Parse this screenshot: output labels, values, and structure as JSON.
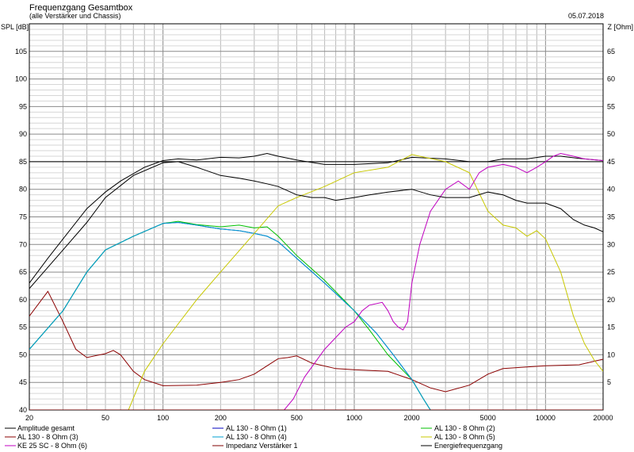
{
  "chart_data": {
    "type": "line",
    "title": "Frequenzgang Gesamtbox",
    "subtitle": "(alle Verstärker und Chassis)",
    "date": "05.07.2018",
    "ylabel_left": "SPL [dB]",
    "ylabel_right": "Z [Ohm]",
    "xscale": "log",
    "xlim": [
      20,
      20000
    ],
    "ylim_left": [
      40,
      110
    ],
    "ylim_right": [
      0,
      70
    ],
    "grid": true,
    "x_ticks": [
      {
        "value": 20,
        "label": "20"
      },
      {
        "value": 50,
        "label": "50"
      },
      {
        "value": 100,
        "label": "100"
      },
      {
        "value": 200,
        "label": "200"
      },
      {
        "value": 500,
        "label": "500"
      },
      {
        "value": 1000,
        "label": "1000"
      },
      {
        "value": 2000,
        "label": "2000"
      },
      {
        "value": 5000,
        "label": "5000"
      },
      {
        "value": 10000,
        "label": "10000"
      },
      {
        "value": 20000,
        "label": "20000"
      }
    ],
    "y_ticks_left": [
      {
        "value": 40,
        "label": "40"
      },
      {
        "value": 45,
        "label": "45"
      },
      {
        "value": 50,
        "label": "50"
      },
      {
        "value": 55,
        "label": "55"
      },
      {
        "value": 60,
        "label": "60"
      },
      {
        "value": 65,
        "label": "65"
      },
      {
        "value": 70,
        "label": "70"
      },
      {
        "value": 75,
        "label": "75"
      },
      {
        "value": 80,
        "label": "80"
      },
      {
        "value": 85,
        "label": "85"
      },
      {
        "value": 90,
        "label": "90"
      },
      {
        "value": 95,
        "label": "95"
      },
      {
        "value": 100,
        "label": "100"
      },
      {
        "value": 105,
        "label": "105"
      }
    ],
    "y_ticks_right": [
      {
        "value": 5,
        "label": "5"
      },
      {
        "value": 10,
        "label": "10"
      },
      {
        "value": 15,
        "label": "15"
      },
      {
        "value": 20,
        "label": "20"
      },
      {
        "value": 25,
        "label": "25"
      },
      {
        "value": 30,
        "label": "30"
      },
      {
        "value": 35,
        "label": "35"
      },
      {
        "value": 40,
        "label": "40"
      },
      {
        "value": 45,
        "label": "45"
      },
      {
        "value": 50,
        "label": "50"
      },
      {
        "value": 55,
        "label": "55"
      },
      {
        "value": 60,
        "label": "60"
      },
      {
        "value": 65,
        "label": "65"
      }
    ],
    "series": [
      {
        "name": "Amplitude gesamt",
        "color": "#000000",
        "axis": "left",
        "x": [
          20,
          25,
          30,
          40,
          50,
          60,
          80,
          100,
          120,
          150,
          200,
          250,
          300,
          350,
          400,
          500,
          700,
          1000,
          1500,
          2000,
          3000,
          4000,
          5000,
          6000,
          8000,
          10000,
          12000,
          15000,
          20000
        ],
        "y": [
          63,
          67.5,
          71,
          76.5,
          79.5,
          81.5,
          84,
          85.2,
          85.5,
          85.3,
          85.8,
          85.7,
          86,
          86.5,
          86,
          85.3,
          84.5,
          84.5,
          84.8,
          85.8,
          85.5,
          85,
          85,
          85.5,
          85.5,
          86,
          86,
          85.6,
          85.2
        ]
      },
      {
        "name": "AL 130 - 8 Ohm (1)",
        "color": "#0000c0",
        "axis": "left",
        "x": [
          20,
          30,
          40,
          50,
          70,
          100,
          120,
          150,
          200,
          250,
          300,
          350,
          400,
          500,
          700,
          1000,
          1300,
          1600,
          2000,
          2300,
          2500
        ],
        "y": [
          51,
          58,
          65,
          69,
          71.5,
          73.8,
          74,
          73.5,
          72.8,
          72.5,
          72,
          71.5,
          70.5,
          67.5,
          63,
          58,
          54,
          50,
          45.5,
          42,
          40
        ]
      },
      {
        "name": "AL 130 - 8 Ohm (2)",
        "color": "#00c000",
        "axis": "left",
        "x": [
          20,
          30,
          40,
          50,
          70,
          100,
          120,
          150,
          200,
          250,
          300,
          350,
          400,
          500,
          700,
          1000,
          1200,
          1500,
          2000,
          2300,
          2500
        ],
        "y": [
          51,
          58,
          65,
          69,
          71.5,
          73.8,
          74.2,
          73.6,
          73.2,
          73.5,
          73,
          73.2,
          71.5,
          68,
          63.5,
          58,
          54.5,
          50,
          45.5,
          42,
          40
        ]
      },
      {
        "name": "AL 130 - 8 Ohm (3)",
        "color": "#8b0000",
        "axis": "right",
        "x": [
          20,
          25,
          30,
          35,
          40,
          50,
          55,
          60,
          70,
          80,
          100,
          150,
          200,
          250,
          300,
          350,
          400,
          450,
          500,
          600,
          800,
          1000,
          1500,
          2000,
          2500,
          3000,
          4000,
          5000,
          6000,
          8000,
          10000,
          15000,
          20000
        ],
        "y": [
          17,
          21.5,
          16,
          11,
          9.5,
          10.2,
          10.8,
          10,
          7,
          5.5,
          4.4,
          4.5,
          5,
          5.5,
          6.5,
          8,
          9.3,
          9.5,
          9.8,
          8.5,
          7.5,
          7.3,
          7,
          5.5,
          4,
          3.3,
          4.5,
          6.5,
          7.5,
          7.8,
          8,
          8.2,
          9.2
        ]
      },
      {
        "name": "AL 130 - 8 Ohm (4)",
        "color": "#00a0d0",
        "axis": "left",
        "x": [
          20,
          30,
          40,
          50,
          70,
          100,
          120,
          150,
          200,
          250,
          300,
          350,
          400,
          500,
          700,
          1000,
          1300,
          1600,
          2000,
          2300,
          2500
        ],
        "y": [
          51,
          58,
          65,
          69,
          71.5,
          73.8,
          74,
          73.5,
          72.8,
          72.5,
          72,
          71.5,
          70.5,
          67.5,
          63,
          58,
          54,
          50,
          45.5,
          42,
          40
        ]
      },
      {
        "name": "AL 130 - 8 Ohm (5)",
        "color": "#c8c800",
        "axis": "left",
        "x": [
          20,
          60,
          66,
          80,
          100,
          150,
          200,
          300,
          400,
          500,
          700,
          1000,
          1500,
          2000,
          3000,
          4000,
          5000,
          6000,
          7000,
          8000,
          9000,
          10000,
          12000,
          14000,
          16000,
          18000,
          20000
        ],
        "y": [
          40,
          40,
          40,
          47,
          52,
          60,
          65,
          72,
          77,
          78.5,
          80.5,
          83,
          84,
          86.3,
          85,
          83,
          76,
          73.5,
          73,
          71.5,
          72.5,
          71,
          65,
          57,
          52,
          49,
          47
        ]
      },
      {
        "name": "KE 25 SC - 8 Ohm  (6)",
        "color": "#c000c0",
        "axis": "left",
        "x": [
          430,
          480,
          550,
          700,
          900,
          1000,
          1100,
          1200,
          1400,
          1500,
          1600,
          1700,
          1800,
          1900,
          2000,
          2200,
          2500,
          3000,
          3500,
          4000,
          4500,
          5000,
          6000,
          7000,
          8000,
          9000,
          10000,
          11000,
          12000,
          14000,
          16000,
          20000
        ],
        "y": [
          40,
          42,
          46,
          51,
          55,
          56,
          58,
          59,
          59.5,
          58,
          56,
          55,
          54.5,
          56,
          63,
          70,
          76,
          80,
          81.5,
          80,
          83,
          84,
          84.5,
          84,
          83,
          84,
          85,
          86,
          86.5,
          86,
          85.5,
          85.2
        ]
      },
      {
        "name": "Impedanz Verstärker 1",
        "color": "#800000",
        "axis": "left",
        "x": [
          20,
          20000
        ],
        "y": [
          40,
          40
        ]
      },
      {
        "name": "Energiefrequenzgang",
        "color": "#000000",
        "axis": "left",
        "x": [
          20,
          30,
          40,
          50,
          70,
          100,
          120,
          150,
          200,
          250,
          300,
          350,
          400,
          500,
          600,
          700,
          800,
          1000,
          1200,
          1500,
          2000,
          2500,
          3000,
          4000,
          5000,
          6000,
          7000,
          8000,
          10000,
          12000,
          14000,
          16000,
          18000,
          20000
        ],
        "y": [
          62,
          69,
          74,
          78.5,
          82.5,
          84.8,
          85,
          84,
          82.5,
          82,
          81.5,
          81,
          80.5,
          79,
          78.5,
          78.5,
          78,
          78.5,
          79,
          79.5,
          80,
          79,
          78.5,
          78.5,
          79.5,
          79,
          78,
          77.5,
          77.5,
          76.5,
          74.5,
          73.5,
          73,
          72.3
        ]
      }
    ]
  },
  "legend": {
    "col1": [
      "Amplitude gesamt",
      "AL 130 - 8 Ohm (3)",
      "KE 25 SC - 8 Ohm  (6)"
    ],
    "col2": [
      "AL 130 - 8 Ohm (1)",
      "AL 130 - 8 Ohm (4)",
      "Impedanz Verstärker 1"
    ],
    "col3": [
      "AL 130 - 8 Ohm (2)",
      "AL 130 - 8 Ohm (5)",
      "Energiefrequenzgang"
    ]
  }
}
